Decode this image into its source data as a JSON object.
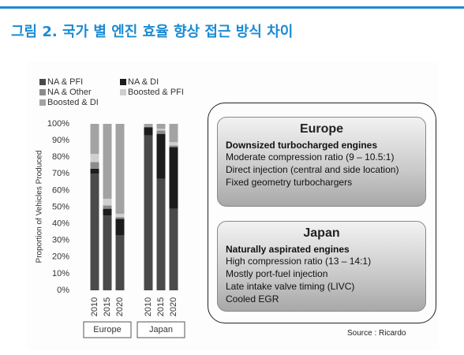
{
  "header": {
    "title": "그림 2. 국가 별 엔진 효율 향상 접근 방식 차이"
  },
  "chart_data": {
    "type": "stacked_bar",
    "y_label": "Proportion of Vehicles Produced",
    "categories": [
      "2010",
      "2015",
      "2020",
      "2010",
      "2015",
      "2020"
    ],
    "groups": [
      "Europe",
      "Japan"
    ],
    "series": [
      {
        "name": "NA & PFI",
        "color": "#4a4a4a",
        "values": [
          70,
          45,
          33,
          93,
          67,
          49
        ]
      },
      {
        "name": "NA & DI",
        "color": "#1c1c1c",
        "values": [
          3,
          4,
          10,
          5,
          27,
          37
        ]
      },
      {
        "name": "NA & Other",
        "color": "#8c8c8c",
        "values": [
          4,
          2,
          1,
          0,
          2,
          1
        ]
      },
      {
        "name": "Boosted & PFI",
        "color": "#cfcfcf",
        "values": [
          5,
          4,
          2,
          0,
          1,
          2
        ]
      },
      {
        "name": "Boosted & DI",
        "color": "#a3a3a3",
        "values": [
          18,
          45,
          54,
          2,
          3,
          11
        ]
      }
    ],
    "ylim": [
      0,
      100
    ],
    "yticks": [
      {
        "value": 0,
        "label": "0%"
      },
      {
        "value": 10,
        "label": "10%"
      },
      {
        "value": 20,
        "label": "20%"
      },
      {
        "value": 30,
        "label": "30%"
      },
      {
        "value": 40,
        "label": "40%"
      },
      {
        "value": 50,
        "label": "50%"
      },
      {
        "value": 60,
        "label": "60%"
      },
      {
        "value": 70,
        "label": "70%"
      },
      {
        "value": 80,
        "label": "80%"
      },
      {
        "value": 90,
        "label": "90%"
      },
      {
        "value": 100,
        "label": "100%"
      }
    ]
  },
  "panels": [
    {
      "title": "Europe",
      "subtitle": "Downsized turbocharged engines",
      "items": [
        "Moderate compression ratio (9 – 10.5:1)",
        "Direct injection (central and side location)",
        "Fixed geometry turbochargers"
      ]
    },
    {
      "title": "Japan",
      "subtitle": "Naturally aspirated engines",
      "items": [
        "High compression ratio (13 – 14:1)",
        "Mostly port-fuel injection",
        "Late intake valve timing (LIVC)",
        "Cooled EGR"
      ]
    }
  ],
  "source": "Source : Ricardo"
}
